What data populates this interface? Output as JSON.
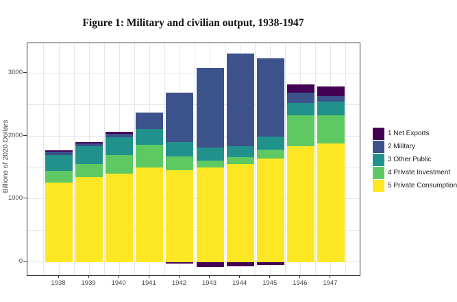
{
  "chart_data": {
    "type": "bar",
    "stacked": true,
    "title": "Figure 1: Military and civilian output, 1938-1947",
    "xlabel": "",
    "ylabel": "Billions of 2020 Dollars",
    "categories": [
      "1938",
      "1939",
      "1940",
      "1941",
      "1942",
      "1943",
      "1944",
      "1945",
      "1946",
      "1947"
    ],
    "series": [
      {
        "name": "1 Net Exports",
        "color": "#440154",
        "values": [
          25,
          20,
          35,
          0,
          -25,
          -80,
          -70,
          -50,
          125,
          150
        ]
      },
      {
        "name": "2 Military",
        "color": "#3b528b",
        "values": [
          45,
          45,
          55,
          255,
          780,
          1255,
          1470,
          1250,
          165,
          90
        ]
      },
      {
        "name": "3 Other Public",
        "color": "#21918c",
        "values": [
          260,
          285,
          290,
          255,
          235,
          215,
          180,
          200,
          200,
          215
        ]
      },
      {
        "name": "4 Private Investment",
        "color": "#5ec962",
        "values": [
          180,
          200,
          290,
          360,
          215,
          110,
          110,
          145,
          490,
          450
        ]
      },
      {
        "name": "5 Private Consumption",
        "color": "#fde725",
        "values": [
          1260,
          1350,
          1400,
          1495,
          1455,
          1495,
          1550,
          1640,
          1835,
          1875
        ]
      }
    ],
    "stack_order_bottom_to_top": [
      "5 Private Consumption",
      "4 Private Investment",
      "3 Other Public",
      "2 Military",
      "1 Net Exports"
    ],
    "yticks": [
      0,
      1000,
      2000,
      3000
    ],
    "yticks_minor": [
      500,
      1500,
      2500
    ],
    "ylim": [
      -210,
      3470
    ],
    "legend_position": "right",
    "grid": true
  }
}
